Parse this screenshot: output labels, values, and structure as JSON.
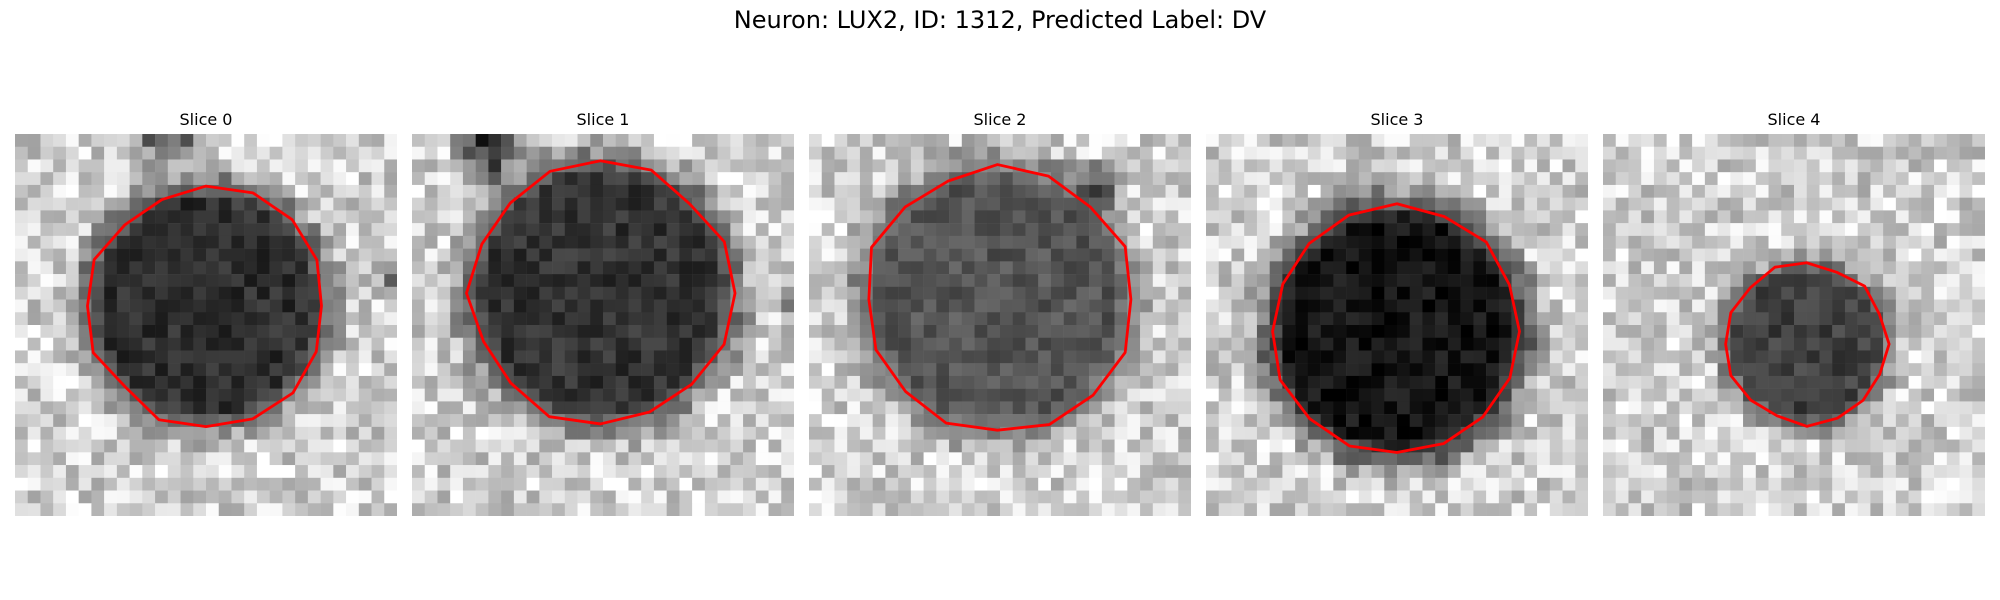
{
  "figure": {
    "title": "Neuron: LUX2, ID: 1312, Predicted Label: DV"
  },
  "panels": [
    {
      "title": "Slice 0",
      "outline_color": "#ff0000"
    },
    {
      "title": "Slice 1",
      "outline_color": "#ff0000"
    },
    {
      "title": "Slice 2",
      "outline_color": "#ff0000"
    },
    {
      "title": "Slice 3",
      "outline_color": "#ff0000"
    },
    {
      "title": "Slice 4",
      "outline_color": "#ff0000"
    }
  ]
}
